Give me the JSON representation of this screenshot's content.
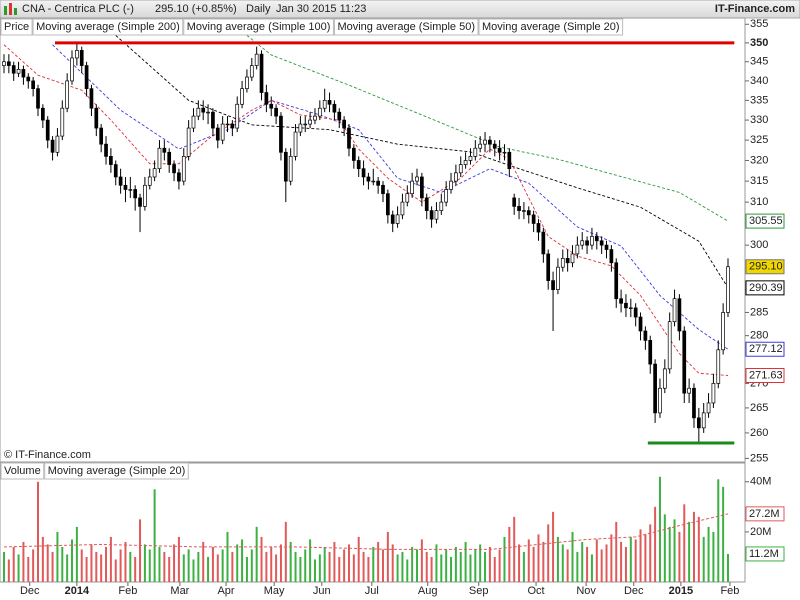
{
  "chart_data": {
    "type": "candlestick",
    "header": "CNA - Centrica PLC (-)",
    "quote": "295.10 (+0.85%)",
    "period": "Daily",
    "timestamp": "Jan 30 2015 11:23",
    "brand": "IT-Finance.com",
    "copyright": "© IT-Finance.com",
    "price_legend": "Price",
    "price_box": "295.10",
    "price_box_color": "#f2d600",
    "up_color": "#ffffff",
    "down_color": "#000000",
    "log_y": true,
    "xlim": [
      -0.82,
      152.5
    ],
    "xticks": [
      {
        "value": 5.3,
        "label": "Dec"
      },
      {
        "value": 15.0,
        "label": "2014"
      },
      {
        "value": 25.5,
        "label": "Feb"
      },
      {
        "value": 36.2,
        "label": "Mar"
      },
      {
        "value": 45.7,
        "label": "Apr"
      },
      {
        "value": 55.6,
        "label": "May"
      },
      {
        "value": 65.4,
        "label": "Jun"
      },
      {
        "value": 75.7,
        "label": "Jul"
      },
      {
        "value": 87.2,
        "label": "Aug"
      },
      {
        "value": 97.7,
        "label": "Sep"
      },
      {
        "value": 109.5,
        "label": "Oct"
      },
      {
        "value": 119.8,
        "label": "Nov"
      },
      {
        "value": 129.6,
        "label": "Dec"
      },
      {
        "value": 139.3,
        "label": "2015"
      },
      {
        "value": 149.4,
        "label": "Feb"
      }
    ],
    "ylim": [
      254.3,
      356.7
    ],
    "yticks": [
      255,
      260,
      265,
      270,
      280,
      285,
      290,
      300,
      310,
      315,
      320,
      325,
      330,
      335,
      340,
      345,
      350,
      355
    ],
    "ohlc": [
      [
        344,
        347,
        342,
        345
      ],
      [
        345,
        347,
        342,
        344
      ],
      [
        344,
        345,
        340,
        342
      ],
      [
        342,
        345,
        341,
        343
      ],
      [
        343,
        344,
        339,
        341
      ],
      [
        341,
        342,
        338,
        340
      ],
      [
        340,
        341,
        336,
        338
      ],
      [
        338,
        339,
        331,
        333
      ],
      [
        333,
        334,
        328,
        330
      ],
      [
        330,
        331,
        323,
        325
      ],
      [
        325,
        326,
        320,
        322
      ],
      [
        322,
        328,
        321,
        326
      ],
      [
        326,
        335,
        325,
        333
      ],
      [
        333,
        342,
        332,
        340
      ],
      [
        340,
        348,
        339,
        346
      ],
      [
        346,
        350,
        344,
        348
      ],
      [
        348,
        349,
        342,
        344
      ],
      [
        344,
        345,
        336,
        338
      ],
      [
        338,
        339,
        331,
        333
      ],
      [
        333,
        334,
        326,
        328
      ],
      [
        328,
        329,
        322,
        324
      ],
      [
        324,
        326,
        319,
        321
      ],
      [
        321,
        323,
        317,
        319
      ],
      [
        319,
        320,
        314,
        316
      ],
      [
        316,
        318,
        312,
        314
      ],
      [
        314,
        316,
        310,
        313
      ],
      [
        313,
        316,
        311,
        313
      ],
      [
        313,
        314,
        308,
        311
      ],
      [
        311,
        312,
        303,
        309
      ],
      [
        309,
        316,
        308,
        314
      ],
      [
        314,
        318,
        313,
        316
      ],
      [
        316,
        320,
        315,
        318
      ],
      [
        318,
        325,
        317,
        323
      ],
      [
        323,
        325,
        320,
        322
      ],
      [
        322,
        323,
        317,
        319
      ],
      [
        319,
        320,
        315,
        317
      ],
      [
        317,
        318,
        313,
        315
      ],
      [
        315,
        323,
        314,
        321
      ],
      [
        321,
        330,
        320,
        328
      ],
      [
        328,
        333,
        327,
        331
      ],
      [
        331,
        335,
        330,
        333
      ],
      [
        333,
        335,
        330,
        332
      ],
      [
        332,
        334,
        329,
        332
      ],
      [
        332,
        333,
        326,
        328
      ],
      [
        328,
        329,
        323,
        325
      ],
      [
        325,
        331,
        324,
        329
      ],
      [
        329,
        331,
        327,
        329
      ],
      [
        329,
        330,
        326,
        328
      ],
      [
        328,
        336,
        327,
        334
      ],
      [
        334,
        340,
        333,
        338
      ],
      [
        338,
        343,
        337,
        341
      ],
      [
        341,
        346,
        340,
        344
      ],
      [
        344,
        349,
        343,
        347
      ],
      [
        347,
        348,
        335,
        337
      ],
      [
        337,
        339,
        332,
        334
      ],
      [
        334,
        336,
        331,
        333
      ],
      [
        333,
        334,
        329,
        331
      ],
      [
        331,
        332,
        320,
        322
      ],
      [
        322,
        323,
        310,
        315
      ],
      [
        315,
        323,
        314,
        321
      ],
      [
        321,
        329,
        320,
        327
      ],
      [
        327,
        331,
        326,
        329
      ],
      [
        329,
        331,
        327,
        329
      ],
      [
        329,
        332,
        328,
        330
      ],
      [
        330,
        333,
        329,
        331
      ],
      [
        331,
        335,
        330,
        333
      ],
      [
        333,
        338,
        332,
        335
      ],
      [
        335,
        337,
        332,
        334
      ],
      [
        334,
        335,
        330,
        332
      ],
      [
        332,
        333,
        328,
        330
      ],
      [
        330,
        331,
        326,
        328
      ],
      [
        328,
        329,
        321,
        323
      ],
      [
        323,
        324,
        318,
        320
      ],
      [
        320,
        321,
        316,
        318
      ],
      [
        318,
        320,
        314,
        316
      ],
      [
        316,
        317,
        313,
        315
      ],
      [
        315,
        318,
        314,
        315
      ],
      [
        315,
        316,
        312,
        314
      ],
      [
        314,
        315,
        310,
        312
      ],
      [
        312,
        313,
        305,
        307
      ],
      [
        307,
        308,
        303,
        305
      ],
      [
        305,
        309,
        304,
        307
      ],
      [
        307,
        312,
        306,
        310
      ],
      [
        310,
        314,
        309,
        312
      ],
      [
        312,
        317,
        311,
        315
      ],
      [
        315,
        318,
        314,
        316
      ],
      [
        316,
        317,
        309,
        311
      ],
      [
        311,
        312,
        306,
        308
      ],
      [
        308,
        309,
        304,
        306
      ],
      [
        306,
        310,
        305,
        308
      ],
      [
        308,
        312,
        307,
        310
      ],
      [
        310,
        315,
        309,
        313
      ],
      [
        313,
        317,
        312,
        315
      ],
      [
        315,
        319,
        314,
        317
      ],
      [
        317,
        321,
        316,
        319
      ],
      [
        319,
        322,
        318,
        320
      ],
      [
        320,
        323,
        319,
        321
      ],
      [
        321,
        325,
        320,
        323
      ],
      [
        323,
        326,
        322,
        324
      ],
      [
        324,
        327,
        322,
        325
      ],
      [
        325,
        326,
        322,
        324
      ],
      [
        324,
        325,
        321,
        323
      ],
      [
        323,
        325,
        320,
        322
      ],
      [
        322,
        324,
        320,
        322
      ],
      [
        322,
        323,
        316,
        318
      ],
      [
        311,
        312,
        307,
        309
      ],
      [
        309,
        311,
        306,
        308
      ],
      [
        308,
        310,
        306,
        308
      ],
      [
        308,
        309,
        305,
        307
      ],
      [
        307,
        308,
        303,
        305
      ],
      [
        305,
        306,
        301,
        303
      ],
      [
        303,
        304,
        296,
        298
      ],
      [
        298,
        299,
        290,
        292
      ],
      [
        292,
        294,
        281,
        290
      ],
      [
        290,
        297,
        289,
        295
      ],
      [
        295,
        299,
        294,
        297
      ],
      [
        297,
        299,
        294,
        296
      ],
      [
        296,
        300,
        295,
        298
      ],
      [
        298,
        302,
        297,
        300
      ],
      [
        300,
        303,
        299,
        301
      ],
      [
        301,
        302,
        298,
        300
      ],
      [
        300,
        304,
        299,
        302
      ],
      [
        302,
        303,
        299,
        301
      ],
      [
        301,
        302,
        298,
        300
      ],
      [
        300,
        301,
        297,
        299
      ],
      [
        299,
        300,
        294,
        296
      ],
      [
        296,
        297,
        286,
        288
      ],
      [
        288,
        290,
        285,
        287
      ],
      [
        287,
        289,
        284,
        286
      ],
      [
        286,
        288,
        284,
        286
      ],
      [
        286,
        287,
        282,
        284
      ],
      [
        284,
        285,
        279,
        281
      ],
      [
        281,
        282,
        277,
        279
      ],
      [
        279,
        280,
        272,
        274
      ],
      [
        274,
        275,
        262,
        264
      ],
      [
        264,
        271,
        263,
        269
      ],
      [
        269,
        275,
        268,
        273
      ],
      [
        273,
        285,
        272,
        283
      ],
      [
        283,
        290,
        282,
        288
      ],
      [
        288,
        289,
        279,
        281
      ],
      [
        281,
        282,
        266,
        268
      ],
      [
        268,
        271,
        266,
        269
      ],
      [
        269,
        270,
        261,
        263
      ],
      [
        263,
        265,
        258,
        261
      ],
      [
        261,
        266,
        260,
        264
      ],
      [
        264,
        268,
        263,
        266
      ],
      [
        266,
        272,
        265,
        270
      ],
      [
        270,
        279,
        269,
        277
      ],
      [
        277,
        287,
        276,
        285
      ],
      [
        285,
        297,
        284,
        295.1
      ]
    ],
    "series": [
      {
        "name": "Moving average (Simple 200)",
        "color": "#2a9a3a",
        "x": [
          50,
          55,
          71,
          86,
          102,
          114,
          127,
          139,
          149
        ],
        "values": [
          352,
          346.8,
          338.9,
          331.3,
          323.3,
          320.3,
          316.1,
          312.3,
          305.55
        ]
      },
      {
        "name": "Moving average (Simple 100)",
        "color": "#000000",
        "x": [
          23,
          38,
          51,
          67,
          81,
          96,
          106,
          118,
          131,
          143,
          149
        ],
        "values": [
          352,
          335,
          328.8,
          327.6,
          324,
          322.1,
          318,
          313.4,
          308.8,
          300.9,
          290.39
        ]
      },
      {
        "name": "Moving average (Simple 50)",
        "color": "#3a3adf",
        "x": [
          10,
          24,
          36,
          46,
          55,
          65,
          73,
          81,
          90,
          100,
          108,
          118,
          127,
          135,
          143,
          149
        ],
        "values": [
          349.5,
          332.5,
          322.8,
          327.6,
          335,
          331.3,
          327.6,
          315.7,
          312.3,
          318,
          314.5,
          304.2,
          299.8,
          288.7,
          281.3,
          277.12
        ]
      },
      {
        "name": "Moving average (Simple 20)",
        "color": "#e0303a",
        "x": [
          0,
          7,
          16,
          22,
          30,
          36,
          42,
          51,
          55,
          61,
          69,
          73,
          79,
          86,
          94,
          100,
          104,
          108,
          112,
          118,
          125,
          131,
          135,
          139,
          143,
          149
        ],
        "values": [
          349.5,
          341.5,
          337.6,
          330,
          319.2,
          319.2,
          325.2,
          332.5,
          335,
          331.3,
          330,
          322.8,
          315.7,
          310,
          315.7,
          322.8,
          320.3,
          311,
          302,
          297.5,
          295.3,
          288.7,
          282.4,
          276.2,
          272.1,
          271.63
        ]
      }
    ],
    "lines": [
      {
        "color": "#e00000",
        "y": 350,
        "x": [
          10.5,
          150.3
        ]
      },
      {
        "color": "#1a8a1a",
        "y": 258,
        "x": [
          132.5,
          150.3
        ]
      }
    ],
    "volume": {
      "name": "Volume",
      "up_color": "#3cb043",
      "down_color": "#e05a5a",
      "ylim": [
        0,
        47.5
      ],
      "yticks": [
        {
          "value": 40,
          "label": "40M"
        },
        {
          "value": 20,
          "label": "20M"
        }
      ],
      "values": [
        12,
        9,
        14,
        11,
        16,
        10,
        13,
        40,
        18,
        15,
        12,
        20,
        14,
        11,
        17,
        22,
        13,
        10,
        15,
        12,
        11,
        14,
        18,
        9,
        13,
        16,
        12,
        10,
        25,
        15,
        13,
        37,
        14,
        12,
        10,
        15,
        18,
        11,
        13,
        9,
        12,
        16,
        10,
        14,
        11,
        13,
        20,
        12,
        15,
        17,
        10,
        13,
        22,
        18,
        12,
        14,
        11,
        15,
        24,
        16,
        12,
        10,
        13,
        17,
        9,
        11,
        14,
        12,
        16,
        10,
        13,
        15,
        11,
        18,
        12,
        10,
        14,
        16,
        13,
        20,
        15,
        11,
        12,
        9,
        14,
        13,
        17,
        12,
        10,
        15,
        11,
        13,
        10,
        14,
        12,
        16,
        11,
        13,
        15,
        12,
        14,
        10,
        13,
        18,
        22,
        26,
        15,
        12,
        17,
        14,
        19,
        16,
        23,
        28,
        18,
        15,
        13,
        20,
        12,
        16,
        14,
        11,
        17,
        13,
        15,
        19,
        24,
        16,
        14,
        18,
        17,
        21,
        19,
        23,
        30,
        42,
        27,
        22,
        25,
        20,
        31,
        24,
        28,
        26,
        18,
        22,
        20,
        41,
        38,
        11.2
      ],
      "last_label": "11.2M",
      "ma": {
        "name": "Moving average (Simple 20)",
        "color": "#e05a5a",
        "x": [
          0,
          20,
          40,
          60,
          80,
          100,
          110,
          120,
          130,
          140,
          149
        ],
        "values": [
          14,
          15,
          14,
          14,
          13,
          13,
          15,
          17,
          18,
          23,
          27.2
        ],
        "last_label": "27.2M"
      }
    }
  }
}
